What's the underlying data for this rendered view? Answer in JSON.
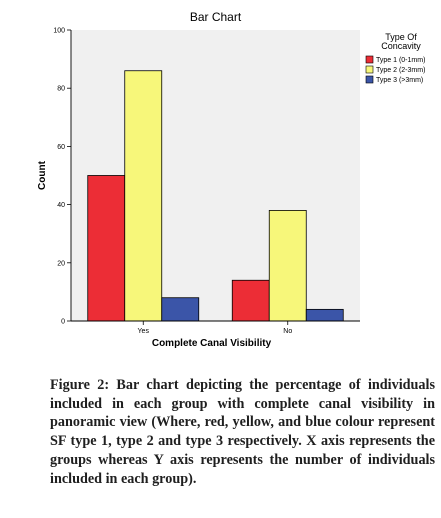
{
  "chart_data": {
    "type": "bar",
    "title": "Bar Chart",
    "xlabel": "Complete Canal Visibility",
    "ylabel": "Count",
    "categories": [
      "Yes",
      "No"
    ],
    "yticks": [
      "0",
      "20",
      "40",
      "60",
      "80",
      "100"
    ],
    "ylim": [
      0,
      100
    ],
    "grid": false,
    "legend_title": "Type Of\nConcavity",
    "legend_placement": "right",
    "series": [
      {
        "name": "Type 1 (0-1mm)",
        "color": "#ec2d36",
        "values": [
          50,
          14
        ]
      },
      {
        "name": "Type 2 (2-3mm)",
        "color": "#f7f77a",
        "values": [
          86,
          38
        ]
      },
      {
        "name": "Type 3 (>3mm)",
        "color": "#3b55a8",
        "values": [
          8,
          4
        ]
      }
    ],
    "plot_background": "#f0f0f0"
  },
  "caption": "Figure 2: Bar chart depicting the percentage of individuals included in each group with complete canal visibility in panoramic view (Where, red, yellow, and blue colour represent SF type 1, type 2 and type 3 respectively. X axis represents the groups whereas Y axis represents the number of individuals included in each group)."
}
